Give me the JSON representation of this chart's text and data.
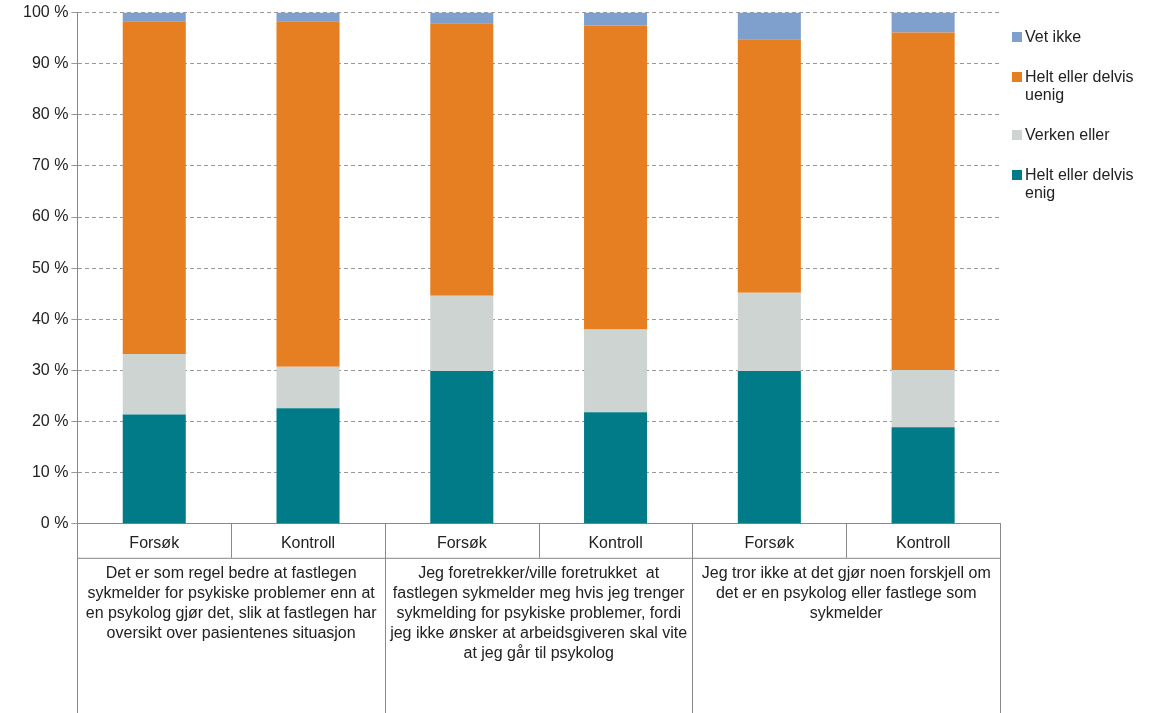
{
  "chart_data": {
    "type": "bar",
    "stacked": true,
    "categories": [
      "Forsøk",
      "Kontroll",
      "Forsøk",
      "Kontroll",
      "Forsøk",
      "Kontroll"
    ],
    "series": [
      {
        "name": "Helt eller delvis enig",
        "color": "#007b87",
        "values": [
          21.4,
          22.6,
          29.9,
          21.8,
          29.9,
          18.9
        ]
      },
      {
        "name": "Verken eller",
        "color": "#cdd4d2",
        "values": [
          11.8,
          8.1,
          14.7,
          16.2,
          15.3,
          11.2
        ]
      },
      {
        "name": "Helt eller delvis uenig",
        "color": "#e67e22",
        "values": [
          65.1,
          67.6,
          53.3,
          59.5,
          49.6,
          66.0
        ]
      },
      {
        "name": "Vet ikke",
        "color": "#7f9fcd",
        "values": [
          1.7,
          1.7,
          2.1,
          2.5,
          5.2,
          3.9
        ]
      }
    ],
    "ylim": [
      0,
      100
    ],
    "yticks": [
      {
        "value": 0,
        "label": "0 %"
      },
      {
        "value": 10,
        "label": "10 %"
      },
      {
        "value": 20,
        "label": "20 %"
      },
      {
        "value": 30,
        "label": "30 %"
      },
      {
        "value": 40,
        "label": "40 %"
      },
      {
        "value": 50,
        "label": "50 %"
      },
      {
        "value": 60,
        "label": "60 %"
      },
      {
        "value": 70,
        "label": "70 %"
      },
      {
        "value": 80,
        "label": "80 %"
      },
      {
        "value": 90,
        "label": "90 %"
      },
      {
        "value": 100,
        "label": "100 %"
      }
    ],
    "grid": "y",
    "legend": "right",
    "annotations": [
      "Det er som regel bedre at fastlegen sykmelder for psykiske problemer enn at en psykolog gjør det, slik at fastlegen har oversikt over pasientenes situasjon",
      "Jeg foretrekker/ville foretrukket  at fastlegen sykmelder meg hvis jeg trenger sykmelding for psykiske problemer, fordi jeg ikke ønsker at arbeidsgiveren skal vite at jeg går til psykolog",
      "Jeg tror ikke at det gjør noen forskjell om det er en psykolog eller fastlege som sykmelder"
    ]
  }
}
